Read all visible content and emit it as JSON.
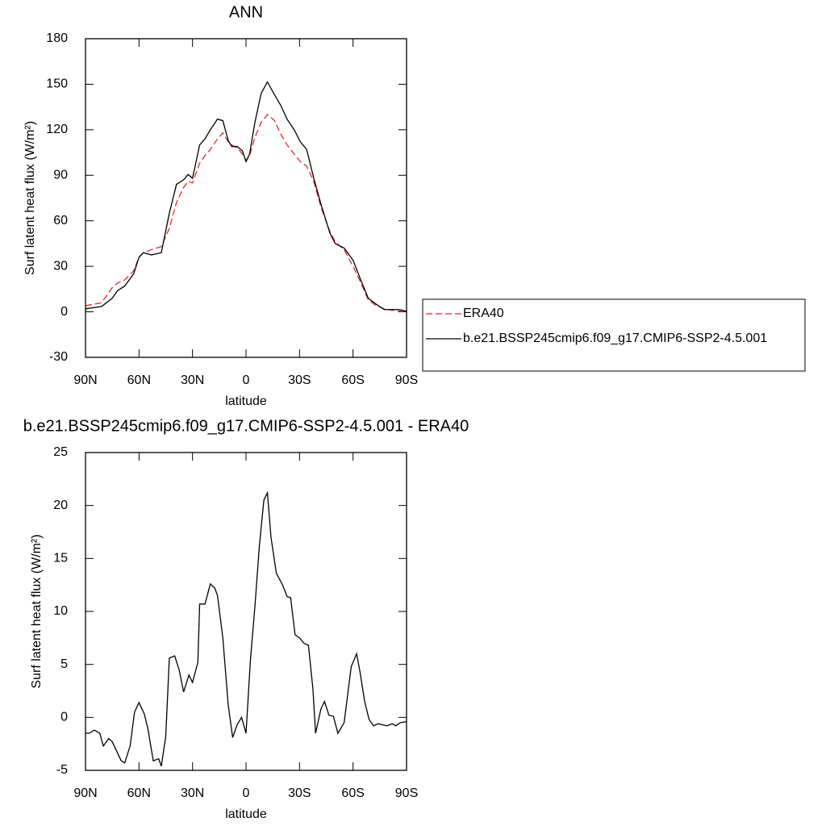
{
  "chart_data": [
    {
      "type": "line",
      "title": "ANN",
      "x_label": "latitude",
      "y_label": "Surf latent heat flux (W/m²)",
      "x": [
        90,
        81,
        75,
        72,
        68,
        63,
        60,
        57.5,
        53,
        47.5,
        43,
        39,
        35,
        32.5,
        30,
        26,
        23,
        20,
        16,
        13,
        10,
        8,
        5,
        2,
        0,
        -2,
        -5,
        -8.5,
        -12,
        -16,
        -19.5,
        -23,
        -27,
        -30.5,
        -34,
        -38,
        -42,
        -47,
        -50,
        -55,
        -60,
        -64,
        -68.5,
        -73,
        -77.5,
        -82,
        -86,
        -90
      ],
      "series": [
        {
          "name": "ERA40",
          "color": "#e8262a",
          "dashed": true,
          "values": [
            4,
            6,
            16,
            19,
            21,
            27,
            36,
            39,
            41,
            43,
            55,
            72,
            82,
            86,
            85,
            98,
            103,
            107,
            114,
            118,
            112,
            110,
            108,
            104,
            100,
            103,
            115,
            125,
            130,
            126,
            117,
            110,
            104,
            99,
            96,
            86,
            69,
            53,
            46,
            41,
            30,
            20,
            8,
            4,
            2,
            1,
            0.5,
            0
          ]
        },
        {
          "name": "b.e21.BSSP245cmip6.f09_g17.CMIP6-SSP2-4.5.001",
          "color": "#000000",
          "dashed": false,
          "values": [
            2,
            3.5,
            9,
            14,
            17,
            25,
            36,
            39,
            37.5,
            39,
            65,
            84,
            87,
            90.5,
            88,
            110,
            114,
            120,
            127,
            126,
            113,
            109,
            109,
            106,
            99,
            104,
            125,
            144,
            151.5,
            143,
            136,
            127,
            120,
            112,
            107,
            88,
            71,
            52,
            45,
            42,
            34,
            22,
            9,
            5,
            1.5,
            1.5,
            1.5,
            0.3
          ]
        }
      ],
      "xlim": [
        90,
        -90
      ],
      "xticks": [
        {
          "value": 90,
          "label": "90N"
        },
        {
          "value": 60,
          "label": "60N"
        },
        {
          "value": 30,
          "label": "30N"
        },
        0,
        {
          "value": -30,
          "label": "30S"
        },
        {
          "value": -60,
          "label": "60S"
        },
        {
          "value": -90,
          "label": "90S"
        }
      ],
      "ylim": [
        -30,
        180
      ],
      "yticks": [
        -30,
        0,
        30,
        60,
        90,
        120,
        150,
        180
      ],
      "legend": "right"
    },
    {
      "type": "line",
      "title": "b.e21.BSSP245cmip6.f09_g17.CMIP6-SSP2-4.5.001 - ERA40",
      "x_label": "latitude",
      "y_label": "Surf latent heat flux (W/m²)",
      "x": [
        90,
        88,
        85,
        82,
        80,
        77,
        75,
        70,
        68,
        65,
        62.5,
        60,
        57,
        55,
        52,
        49,
        47.5,
        45,
        43,
        40,
        37.5,
        35,
        32,
        30,
        27,
        26,
        23,
        20,
        17.5,
        16,
        13,
        10,
        7.5,
        5,
        2.5,
        0,
        -2.5,
        -5,
        -7.5,
        -10,
        -12,
        -14,
        -17,
        -20.5,
        -23,
        -25,
        -27.5,
        -30,
        -32.5,
        -35,
        -37.5,
        -39,
        -42,
        -44,
        -46.5,
        -49,
        -51.5,
        -55,
        -59,
        -62,
        -64,
        -66.5,
        -69,
        -71.5,
        -74,
        -76.5,
        -79,
        -82,
        -84,
        -86.5,
        -90
      ],
      "values": [
        -1.5,
        -1.5,
        -1.2,
        -1.5,
        -2.7,
        -2.0,
        -2.3,
        -4.1,
        -4.3,
        -2.7,
        0.5,
        1.4,
        0.3,
        -1.1,
        -4.1,
        -3.9,
        -4.6,
        -1.8,
        5.6,
        5.8,
        4.5,
        2.4,
        4.0,
        3.3,
        5.2,
        10.7,
        10.7,
        12.6,
        12.2,
        11.5,
        7.5,
        1.2,
        -1.9,
        -0.7,
        0,
        -1.5,
        5.5,
        10.5,
        16.2,
        20.5,
        21.2,
        17,
        13.6,
        12.5,
        11.4,
        11.3,
        7.8,
        7.5,
        7.0,
        6.8,
        2.7,
        -1.5,
        0.8,
        1.5,
        0.2,
        0.1,
        -1.5,
        -0.5,
        4.8,
        6.0,
        4.2,
        1.5,
        -0.2,
        -0.8,
        -0.6,
        -0.7,
        -0.8,
        -0.6,
        -0.8,
        -0.5,
        -0.4
      ],
      "color": "#000000",
      "xlim": [
        90,
        -90
      ],
      "xticks": [
        {
          "value": 90,
          "label": "90N"
        },
        {
          "value": 60,
          "label": "60N"
        },
        {
          "value": 30,
          "label": "30N"
        },
        0,
        {
          "value": -30,
          "label": "30S"
        },
        {
          "value": -60,
          "label": "60S"
        },
        {
          "value": -90,
          "label": "90S"
        }
      ],
      "ylim": [
        -5,
        25
      ],
      "yticks": [
        -5,
        0,
        5,
        10,
        15,
        20,
        25
      ]
    }
  ]
}
